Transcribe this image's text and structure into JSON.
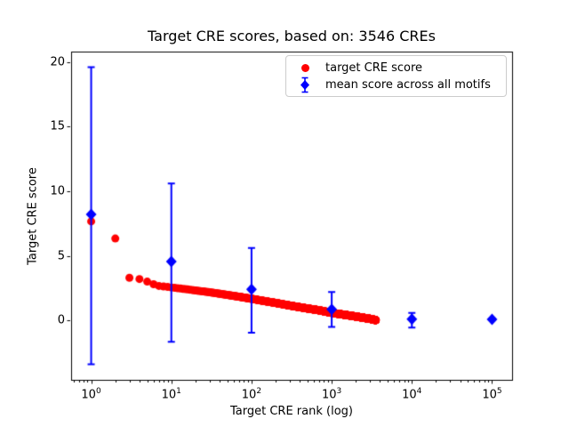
{
  "chart_data": {
    "type": "scatter",
    "title": "Target CRE scores, based on: 3546 CREs",
    "xlabel": "Target CRE rank (log)",
    "ylabel": "Target CRE score",
    "x_scale": "log",
    "xlim_log10": [
      -0.25,
      5.25
    ],
    "ylim": [
      -4.6,
      20.8
    ],
    "grid": false,
    "legend_position": "upper right",
    "x_ticks": [
      {
        "base": "10",
        "exp": "0"
      },
      {
        "base": "10",
        "exp": "1"
      },
      {
        "base": "10",
        "exp": "2"
      },
      {
        "base": "10",
        "exp": "3"
      },
      {
        "base": "10",
        "exp": "4"
      },
      {
        "base": "10",
        "exp": "5"
      }
    ],
    "y_ticks": [
      0,
      5,
      10,
      15,
      20
    ],
    "colors": {
      "target": "#ff0000",
      "mean": "#0000ff",
      "axes": "#000000",
      "legend_border": "#cccccc"
    },
    "series": [
      {
        "name": "target CRE score",
        "marker": "circle",
        "color": "#ff0000",
        "n_points": 3546,
        "x_is_rank": true,
        "anchor_points": [
          [
            1,
            7.66
          ],
          [
            2,
            6.34
          ],
          [
            3,
            3.3
          ],
          [
            4,
            3.2
          ],
          [
            5,
            3.0
          ],
          [
            6,
            2.8
          ],
          [
            7,
            2.67
          ],
          [
            10,
            2.55
          ],
          [
            15,
            2.42
          ],
          [
            20,
            2.32
          ],
          [
            30,
            2.18
          ],
          [
            50,
            1.97
          ],
          [
            70,
            1.83
          ],
          [
            100,
            1.67
          ],
          [
            150,
            1.48
          ],
          [
            200,
            1.35
          ],
          [
            300,
            1.15
          ],
          [
            500,
            0.92
          ],
          [
            700,
            0.78
          ],
          [
            1000,
            0.58
          ],
          [
            1500,
            0.42
          ],
          [
            2000,
            0.3
          ],
          [
            2500,
            0.2
          ],
          [
            3000,
            0.12
          ],
          [
            3546,
            0.02
          ]
        ]
      },
      {
        "name": "mean score across all motifs",
        "marker": "diamond",
        "color": "#0000ff",
        "points": [
          {
            "x": 1,
            "y": 8.2,
            "err_low": -3.4,
            "err_high": 19.6
          },
          {
            "x": 10,
            "y": 4.55,
            "err_low": -1.65,
            "err_high": 10.6
          },
          {
            "x": 100,
            "y": 2.4,
            "err_low": -0.95,
            "err_high": 5.6
          },
          {
            "x": 1000,
            "y": 0.85,
            "err_low": -0.5,
            "err_high": 2.2
          },
          {
            "x": 10000,
            "y": 0.1,
            "err_low": -0.55,
            "err_high": 0.58
          },
          {
            "x": 100000,
            "y": 0.08,
            "err_low": 0.02,
            "err_high": 0.15
          }
        ]
      }
    ]
  }
}
